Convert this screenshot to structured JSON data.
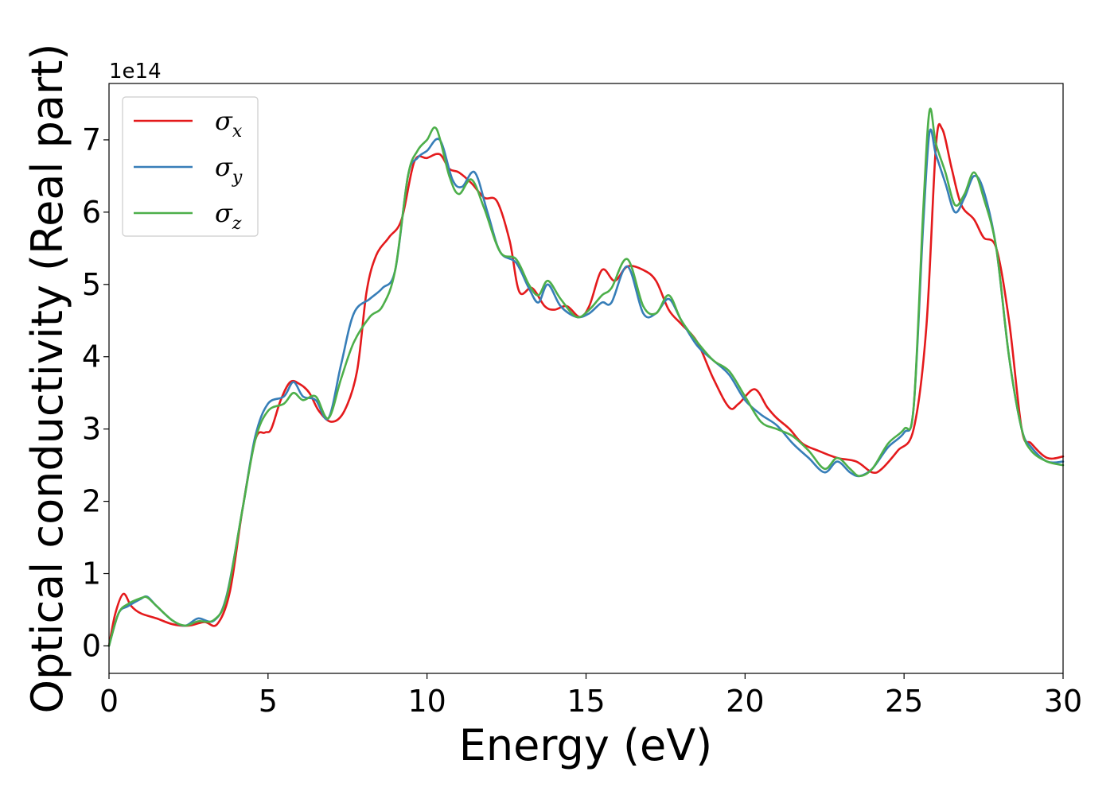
{
  "chart_data": {
    "type": "line",
    "xlabel": "Energy (eV)",
    "ylabel": "Optical conductivity (Real part)",
    "y_offset_label": "1e14",
    "xlim": [
      0,
      30
    ],
    "ylim": [
      -0.38,
      7.78
    ],
    "xticks": [
      0,
      5,
      10,
      15,
      20,
      25,
      30
    ],
    "yticks": [
      0,
      1,
      2,
      3,
      4,
      5,
      6,
      7
    ],
    "grid": false,
    "legend_position": "top-left",
    "series": [
      {
        "name": "σx",
        "label_main": "σ",
        "label_sub": "x",
        "color": "#e41a1c",
        "x": [
          0,
          0.2,
          0.45,
          0.7,
          1.0,
          1.5,
          2.0,
          2.5,
          3.0,
          3.4,
          3.8,
          4.2,
          4.6,
          4.9,
          5.1,
          5.4,
          5.7,
          6.0,
          6.3,
          6.6,
          7.0,
          7.4,
          7.8,
          8.1,
          8.4,
          8.8,
          9.2,
          9.6,
          10.0,
          10.4,
          10.7,
          11.0,
          11.4,
          11.8,
          12.2,
          12.6,
          12.9,
          13.3,
          13.7,
          14.0,
          14.4,
          14.8,
          15.1,
          15.5,
          15.9,
          16.3,
          16.8,
          17.2,
          17.6,
          18.0,
          18.5,
          19.0,
          19.5,
          19.8,
          20.3,
          20.7,
          21.0,
          21.4,
          21.8,
          22.3,
          22.9,
          23.5,
          24.0,
          24.3,
          24.8,
          25.3,
          25.7,
          26.0,
          26.2,
          26.5,
          26.8,
          27.2,
          27.5,
          27.9,
          28.3,
          28.7,
          29.0,
          29.5,
          30.0
        ],
        "y": [
          0,
          0.45,
          0.72,
          0.55,
          0.45,
          0.38,
          0.3,
          0.28,
          0.33,
          0.3,
          0.75,
          1.9,
          2.85,
          2.95,
          3.0,
          3.4,
          3.65,
          3.62,
          3.5,
          3.25,
          3.1,
          3.25,
          3.8,
          4.9,
          5.4,
          5.65,
          5.9,
          6.7,
          6.75,
          6.8,
          6.6,
          6.55,
          6.4,
          6.2,
          6.15,
          5.6,
          4.9,
          4.95,
          4.7,
          4.65,
          4.7,
          4.55,
          4.7,
          5.2,
          5.05,
          5.25,
          5.2,
          5.05,
          4.65,
          4.45,
          4.2,
          3.7,
          3.3,
          3.35,
          3.55,
          3.3,
          3.15,
          3.0,
          2.8,
          2.7,
          2.6,
          2.55,
          2.4,
          2.45,
          2.7,
          3.0,
          4.4,
          6.9,
          7.15,
          6.6,
          6.1,
          5.9,
          5.65,
          5.5,
          4.5,
          3.0,
          2.8,
          2.6,
          2.62
        ]
      },
      {
        "name": "σy",
        "label_main": "σ",
        "label_sub": "y",
        "color": "#377eb8",
        "x": [
          0,
          0.3,
          0.6,
          1.0,
          1.2,
          1.5,
          2.0,
          2.4,
          2.8,
          3.3,
          3.7,
          4.2,
          4.6,
          5.0,
          5.5,
          5.8,
          6.1,
          6.5,
          6.9,
          7.3,
          7.7,
          8.2,
          8.6,
          9.0,
          9.4,
          9.7,
          10.0,
          10.4,
          10.8,
          11.1,
          11.5,
          11.9,
          12.3,
          12.8,
          13.2,
          13.5,
          13.8,
          14.2,
          14.7,
          15.1,
          15.5,
          15.8,
          16.3,
          16.8,
          17.2,
          17.6,
          18.0,
          18.5,
          19.0,
          19.5,
          20.0,
          20.5,
          21.0,
          21.5,
          22.0,
          22.5,
          22.9,
          23.3,
          23.6,
          24.0,
          24.5,
          25.0,
          25.3,
          25.6,
          25.8,
          26.0,
          26.3,
          26.6,
          26.9,
          27.2,
          27.5,
          27.9,
          28.3,
          28.7,
          29.0,
          29.5,
          30.0
        ],
        "y": [
          0,
          0.45,
          0.55,
          0.65,
          0.68,
          0.55,
          0.35,
          0.28,
          0.38,
          0.35,
          0.7,
          1.9,
          2.9,
          3.35,
          3.45,
          3.65,
          3.45,
          3.4,
          3.15,
          3.9,
          4.6,
          4.8,
          4.95,
          5.2,
          6.5,
          6.75,
          6.85,
          7.0,
          6.45,
          6.35,
          6.55,
          6.0,
          5.45,
          5.3,
          4.95,
          4.75,
          5.0,
          4.7,
          4.55,
          4.6,
          4.75,
          4.75,
          5.25,
          4.6,
          4.6,
          4.8,
          4.5,
          4.15,
          3.95,
          3.75,
          3.4,
          3.2,
          3.05,
          2.8,
          2.6,
          2.4,
          2.55,
          2.4,
          2.35,
          2.45,
          2.75,
          2.95,
          3.3,
          5.8,
          7.1,
          6.8,
          6.4,
          6.0,
          6.2,
          6.5,
          6.3,
          5.5,
          4.0,
          3.0,
          2.75,
          2.55,
          2.55
        ]
      },
      {
        "name": "σz",
        "label_main": "σ",
        "label_sub": "z",
        "color": "#4daf4a",
        "x": [
          0,
          0.3,
          0.6,
          1.0,
          1.2,
          1.5,
          2.0,
          2.4,
          2.8,
          3.3,
          3.7,
          4.2,
          4.6,
          5.0,
          5.5,
          5.8,
          6.1,
          6.5,
          6.9,
          7.3,
          7.7,
          8.2,
          8.6,
          9.0,
          9.4,
          9.7,
          10.0,
          10.3,
          10.7,
          11.0,
          11.4,
          11.8,
          12.3,
          12.8,
          13.2,
          13.5,
          13.8,
          14.2,
          14.7,
          15.1,
          15.5,
          15.8,
          16.3,
          16.8,
          17.2,
          17.6,
          18.0,
          18.5,
          19.0,
          19.5,
          20.0,
          20.5,
          21.0,
          21.5,
          22.0,
          22.5,
          22.9,
          23.3,
          23.6,
          24.0,
          24.5,
          25.0,
          25.3,
          25.6,
          25.8,
          26.0,
          26.3,
          26.6,
          26.9,
          27.2,
          27.5,
          27.9,
          28.3,
          28.7,
          29.0,
          29.5,
          30.0
        ],
        "y": [
          0,
          0.45,
          0.58,
          0.66,
          0.67,
          0.55,
          0.35,
          0.28,
          0.34,
          0.36,
          0.68,
          1.9,
          2.85,
          3.25,
          3.35,
          3.5,
          3.4,
          3.45,
          3.15,
          3.7,
          4.2,
          4.55,
          4.7,
          5.2,
          6.5,
          6.85,
          7.0,
          7.15,
          6.5,
          6.25,
          6.45,
          6.05,
          5.45,
          5.35,
          5.0,
          4.85,
          5.05,
          4.8,
          4.55,
          4.65,
          4.85,
          4.95,
          5.35,
          4.7,
          4.6,
          4.85,
          4.5,
          4.2,
          3.95,
          3.8,
          3.45,
          3.1,
          3.0,
          2.9,
          2.7,
          2.45,
          2.6,
          2.45,
          2.35,
          2.45,
          2.8,
          3.0,
          3.3,
          6.0,
          7.4,
          6.95,
          6.55,
          6.1,
          6.25,
          6.55,
          6.2,
          5.5,
          4.0,
          3.0,
          2.7,
          2.55,
          2.5
        ]
      }
    ]
  }
}
